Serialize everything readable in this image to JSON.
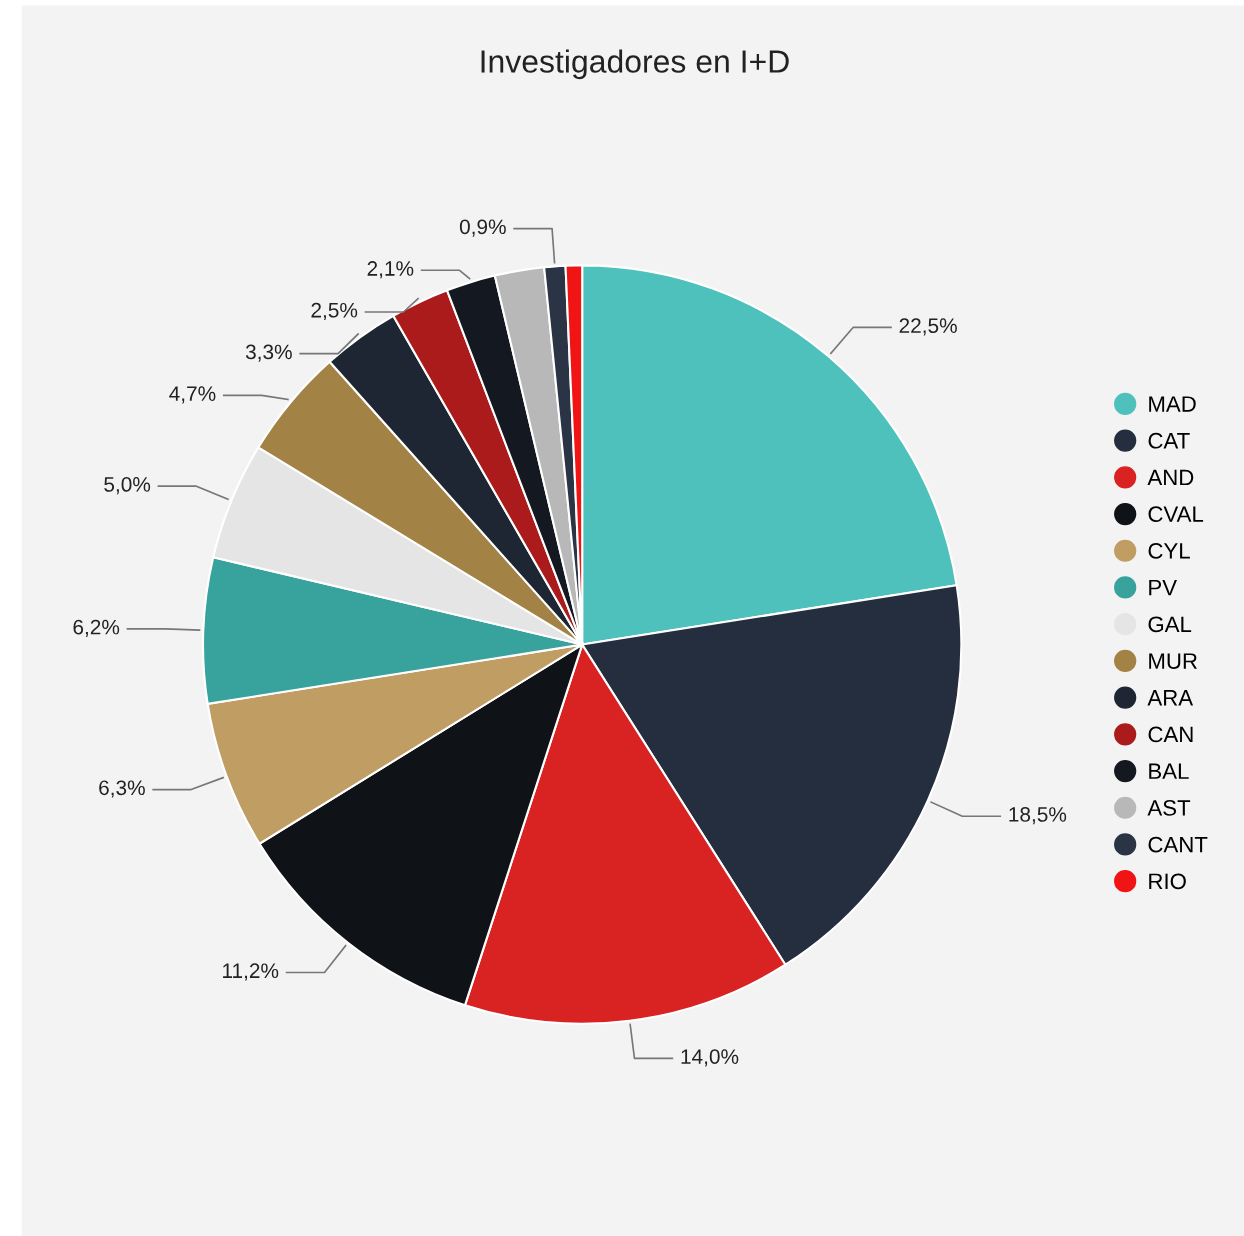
{
  "chart_data": {
    "type": "pie",
    "title": "Investigadores en I+D",
    "categories": [
      "MAD",
      "CAT",
      "AND",
      "CVAL",
      "CYL",
      "PV",
      "GAL",
      "MUR",
      "ARA",
      "CAN",
      "BAL",
      "AST",
      "CANT",
      "RIO"
    ],
    "values": [
      22.5,
      18.5,
      14.0,
      11.2,
      6.3,
      6.2,
      5.0,
      4.7,
      3.3,
      2.5,
      2.1,
      2.1,
      0.9,
      0.7
    ],
    "value_labels": [
      "22,5%",
      "18,5%",
      "14,0%",
      "11,2%",
      "6,3%",
      "6,2%",
      "5,0%",
      "4,7%",
      "3,3%",
      "2,5%",
      "2,1%",
      null,
      "0,9%",
      null
    ],
    "colors": [
      "#4fc1bd",
      "#252e3e",
      "#d92323",
      "#0f1217",
      "#bf9d63",
      "#38a29d",
      "#e5e5e5",
      "#a38345",
      "#1f2633",
      "#ab1b1b",
      "#141820",
      "#b8b8b8",
      "#2b3445",
      "#f01414"
    ],
    "legend": "right"
  }
}
